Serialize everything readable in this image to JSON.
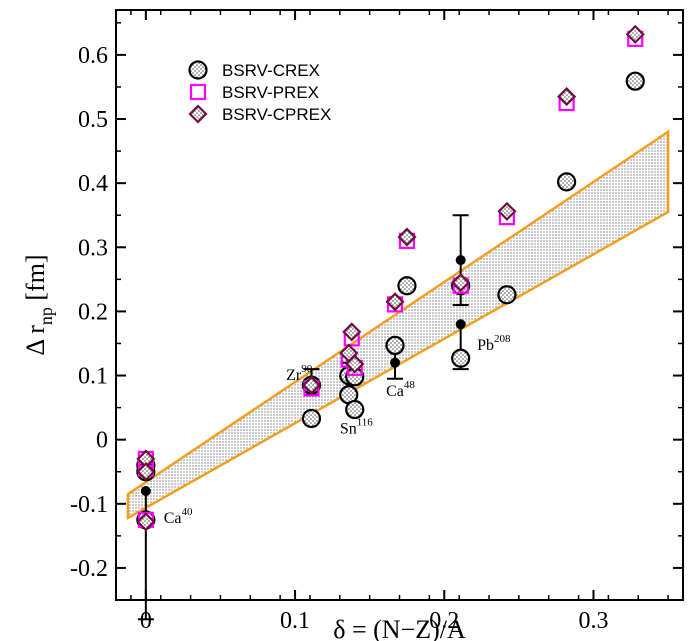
{
  "chart_data": {
    "type": "scatter",
    "xlabel": "δ = (N−Z)/A",
    "ylabel": "Δ r",
    "ylabel_sub": "np",
    "ylabel_unit": " [fm]",
    "xlim": [
      -0.02,
      0.36
    ],
    "ylim": [
      -0.25,
      0.67
    ],
    "xticks": [
      0,
      0.1,
      0.2,
      0.3
    ],
    "xtick_labels": [
      "0",
      "0.1",
      "0.2",
      "0.3"
    ],
    "yticks": [
      -0.2,
      -0.1,
      0,
      0.1,
      0.2,
      0.3,
      0.4,
      0.5,
      0.6
    ],
    "ytick_labels": [
      "-0.2",
      "-0.1",
      "0",
      "0.1",
      "0.2",
      "0.3",
      "0.4",
      "0.5",
      "0.6"
    ],
    "grid": false,
    "legend_position": "top-left",
    "band": {
      "lower": [
        [
          -0.012,
          -0.122
        ],
        [
          0.35,
          0.355
        ]
      ],
      "upper": [
        [
          -0.012,
          -0.085
        ],
        [
          0.35,
          0.48
        ]
      ],
      "fill_color": "#d8d8d8",
      "edge_color": "#f0a020"
    },
    "series": [
      {
        "name": "BSRV-CREX",
        "marker": "circle-dotted",
        "color": "#000000",
        "points": [
          [
            0,
            -0.04
          ],
          [
            0,
            -0.05
          ],
          [
            0,
            -0.125
          ],
          [
            0.111,
            0.033
          ],
          [
            0.111,
            0.085
          ],
          [
            0.136,
            0.07
          ],
          [
            0.136,
            0.1
          ],
          [
            0.14,
            0.098
          ],
          [
            0.14,
            0.047
          ],
          [
            0.167,
            0.147
          ],
          [
            0.175,
            0.24
          ],
          [
            0.211,
            0.127
          ],
          [
            0.211,
            0.24
          ],
          [
            0.242,
            0.226
          ],
          [
            0.282,
            0.402
          ],
          [
            0.328,
            0.559
          ]
        ]
      },
      {
        "name": "BSRV-PREX",
        "marker": "square",
        "color": "#ff00ff",
        "points": [
          [
            0,
            -0.03
          ],
          [
            0,
            -0.045
          ],
          [
            0,
            -0.125
          ],
          [
            0.111,
            0.08
          ],
          [
            0.136,
            0.125
          ],
          [
            0.138,
            0.158
          ],
          [
            0.14,
            0.112
          ],
          [
            0.167,
            0.211
          ],
          [
            0.175,
            0.31
          ],
          [
            0.211,
            0.24
          ],
          [
            0.242,
            0.347
          ],
          [
            0.282,
            0.525
          ],
          [
            0.328,
            0.625
          ]
        ]
      },
      {
        "name": "BSRV-CPREX",
        "marker": "diamond",
        "color": "#6e0f3e",
        "points": [
          [
            0,
            -0.03
          ],
          [
            0,
            -0.05
          ],
          [
            0,
            -0.128
          ],
          [
            0.111,
            0.085
          ],
          [
            0.136,
            0.135
          ],
          [
            0.138,
            0.168
          ],
          [
            0.14,
            0.118
          ],
          [
            0.167,
            0.215
          ],
          [
            0.175,
            0.316
          ],
          [
            0.211,
            0.245
          ],
          [
            0.242,
            0.356
          ],
          [
            0.282,
            0.535
          ],
          [
            0.328,
            0.632
          ]
        ]
      }
    ],
    "experimental": [
      {
        "x": 0,
        "y": -0.08,
        "err_lo": 0.2,
        "err_hi": 0.0,
        "label": "Ca",
        "sup": "40"
      },
      {
        "x": 0.111,
        "y": 0.09,
        "err_lo": 0.02,
        "err_hi": 0.02,
        "label": "Zr",
        "sup": "90"
      },
      {
        "x": 0.136,
        "y": 0.105,
        "err_lo": 0.03,
        "err_hi": 0.015,
        "label": "Sn",
        "sup": "116"
      },
      {
        "x": 0.167,
        "y": 0.12,
        "err_lo": 0.025,
        "err_hi": 0.025,
        "label": "Ca",
        "sup": "48"
      },
      {
        "x": 0.211,
        "y": 0.28,
        "err_lo": 0.07,
        "err_hi": 0.07,
        "label": "",
        "sup": ""
      },
      {
        "x": 0.211,
        "y": 0.18,
        "err_lo": 0.07,
        "err_hi": 0.0,
        "label": "Pb",
        "sup": "208"
      }
    ],
    "annotations": [
      {
        "text": "Ca",
        "sup": "40",
        "x": 0.012,
        "y": -0.13,
        "anchor": "start"
      },
      {
        "text": "Zr",
        "sup": "90",
        "x": 0.094,
        "y": 0.093,
        "anchor": "start"
      },
      {
        "text": "Sn",
        "sup": "116",
        "x": 0.13,
        "y": 0.01,
        "anchor": "start"
      },
      {
        "text": "Ca",
        "sup": "48",
        "x": 0.161,
        "y": 0.068,
        "anchor": "start"
      },
      {
        "text": "Pb",
        "sup": "208",
        "x": 0.222,
        "y": 0.14,
        "anchor": "start"
      }
    ]
  }
}
